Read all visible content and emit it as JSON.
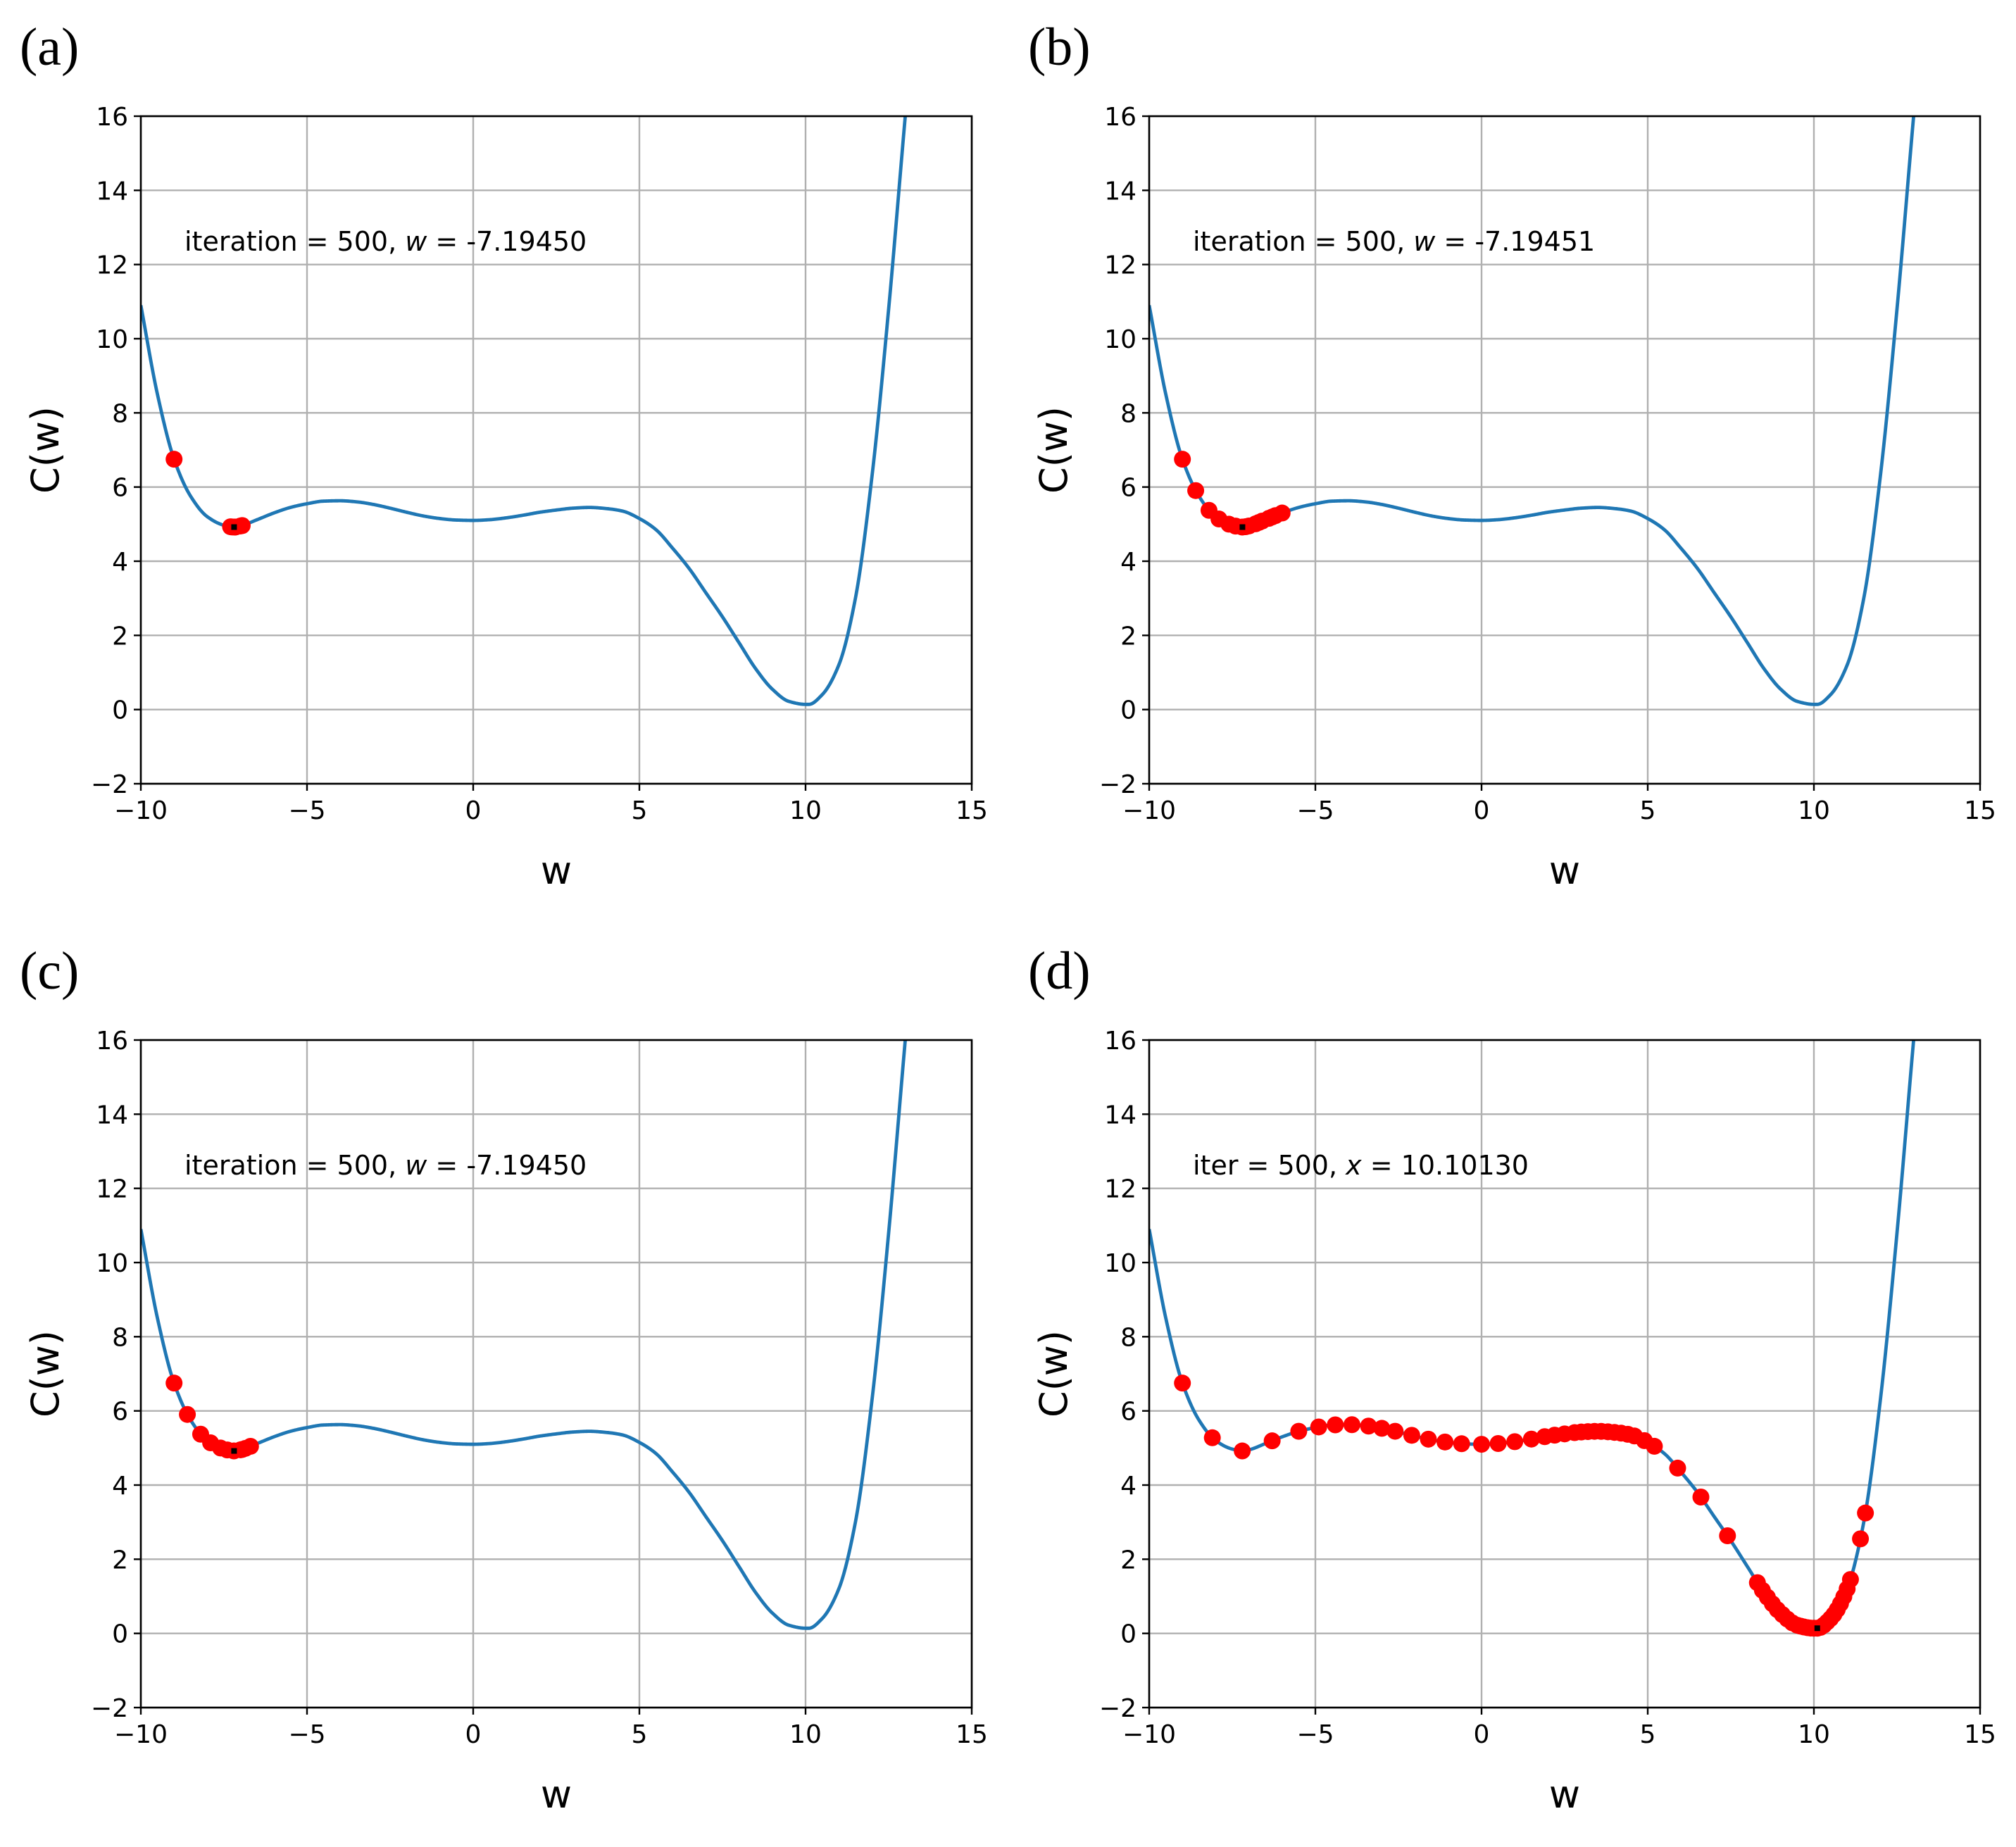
{
  "chart_data": [
    {
      "type": "line",
      "panel": "(a)",
      "annotation": "iteration = 500, w = -7.19450",
      "annotation_parts": [
        "iteration = 500, ",
        "w",
        " = -7.19450"
      ],
      "xlabel": "w",
      "ylabel": "C(w)",
      "xlim": [
        -10,
        15
      ],
      "ylim": [
        -2,
        16
      ],
      "xticks": [
        -10,
        -5,
        0,
        5,
        10,
        15
      ],
      "xtick_labels": [
        "−10",
        "−5",
        "0",
        "5",
        "10",
        "15"
      ],
      "yticks": [
        -2,
        0,
        2,
        4,
        6,
        8,
        10,
        12,
        14,
        16
      ],
      "ytick_labels": [
        "−2",
        "0",
        "2",
        "4",
        "6",
        "8",
        "10",
        "12",
        "14",
        "16"
      ],
      "grid": true,
      "curve_color": "#1f77b4",
      "point_color": "#ff0000",
      "iterates": [
        -9.0,
        -7.3,
        -7.0,
        -7.15,
        -7.25,
        -7.18,
        -6.95
      ],
      "current": -7.1945
    },
    {
      "type": "line",
      "panel": "(b)",
      "annotation": "iteration = 500, w = -7.19451",
      "annotation_parts": [
        "iteration = 500, ",
        "w",
        " = -7.19451"
      ],
      "xlabel": "w",
      "ylabel": "C(w)",
      "xlim": [
        -10,
        15
      ],
      "ylim": [
        -2,
        16
      ],
      "xticks": [
        -10,
        -5,
        0,
        5,
        10,
        15
      ],
      "xtick_labels": [
        "−10",
        "−5",
        "0",
        "5",
        "10",
        "15"
      ],
      "yticks": [
        -2,
        0,
        2,
        4,
        6,
        8,
        10,
        12,
        14,
        16
      ],
      "ytick_labels": [
        "−2",
        "0",
        "2",
        "4",
        "6",
        "8",
        "10",
        "12",
        "14",
        "16"
      ],
      "grid": true,
      "curve_color": "#1f77b4",
      "point_color": "#ff0000",
      "iterates": [
        -9.0,
        -8.6,
        -8.2,
        -7.9,
        -7.6,
        -7.4,
        -7.2,
        -7.0,
        -6.8,
        -6.6,
        -6.4,
        -6.2,
        -6.0,
        -6.3,
        -6.7,
        -7.1
      ],
      "current": -7.19451
    },
    {
      "type": "line",
      "panel": "(c)",
      "annotation": "iteration = 500, w = -7.19450",
      "annotation_parts": [
        "iteration = 500, ",
        "w",
        " = -7.19450"
      ],
      "xlabel": "w",
      "ylabel": "C(w)",
      "xlim": [
        -10,
        15
      ],
      "ylim": [
        -2,
        16
      ],
      "xticks": [
        -10,
        -5,
        0,
        5,
        10,
        15
      ],
      "xtick_labels": [
        "−10",
        "−5",
        "0",
        "5",
        "10",
        "15"
      ],
      "yticks": [
        -2,
        0,
        2,
        4,
        6,
        8,
        10,
        12,
        14,
        16
      ],
      "ytick_labels": [
        "−2",
        "0",
        "2",
        "4",
        "6",
        "8",
        "10",
        "12",
        "14",
        "16"
      ],
      "grid": true,
      "curve_color": "#1f77b4",
      "point_color": "#ff0000",
      "iterates": [
        -9.0,
        -8.6,
        -8.2,
        -7.9,
        -7.6,
        -7.4,
        -7.2,
        -7.0,
        -6.85,
        -6.7,
        -6.95
      ],
      "current": -7.1945
    },
    {
      "type": "line",
      "panel": "(d)",
      "annotation": "iter = 500, x = 10.10130",
      "annotation_parts": [
        "iter = 500, ",
        "x",
        " = 10.10130"
      ],
      "xlabel": "w",
      "ylabel": "C(w)",
      "xlim": [
        -10,
        15
      ],
      "ylim": [
        -2,
        16
      ],
      "xticks": [
        -10,
        -5,
        0,
        5,
        10,
        15
      ],
      "xtick_labels": [
        "−10",
        "−5",
        "0",
        "5",
        "10",
        "15"
      ],
      "yticks": [
        -2,
        0,
        2,
        4,
        6,
        8,
        10,
        12,
        14,
        16
      ],
      "ytick_labels": [
        "−2",
        "0",
        "2",
        "4",
        "6",
        "8",
        "10",
        "12",
        "14",
        "16"
      ],
      "grid": true,
      "curve_color": "#1f77b4",
      "point_color": "#ff0000",
      "iterates": [
        -9.0,
        -8.1,
        -7.2,
        -6.3,
        -5.5,
        -4.9,
        -4.4,
        -3.9,
        -3.4,
        -3.0,
        -2.6,
        -2.1,
        -1.6,
        -1.1,
        -0.6,
        0.0,
        0.5,
        1.0,
        1.5,
        1.9,
        2.2,
        2.5,
        2.8,
        3.0,
        3.2,
        3.4,
        3.6,
        3.8,
        4.0,
        4.2,
        4.4,
        4.6,
        4.9,
        5.2,
        5.9,
        6.6,
        7.4,
        8.3,
        8.45,
        8.6,
        8.75,
        8.9,
        9.05,
        9.2,
        9.35,
        9.5,
        9.6,
        9.7,
        9.8,
        9.9,
        10.0,
        10.1,
        10.2,
        10.3,
        10.4,
        10.5,
        10.6,
        10.7,
        10.8,
        10.9,
        11.0,
        11.1,
        11.4,
        11.55
      ],
      "current": 10.1013
    }
  ]
}
